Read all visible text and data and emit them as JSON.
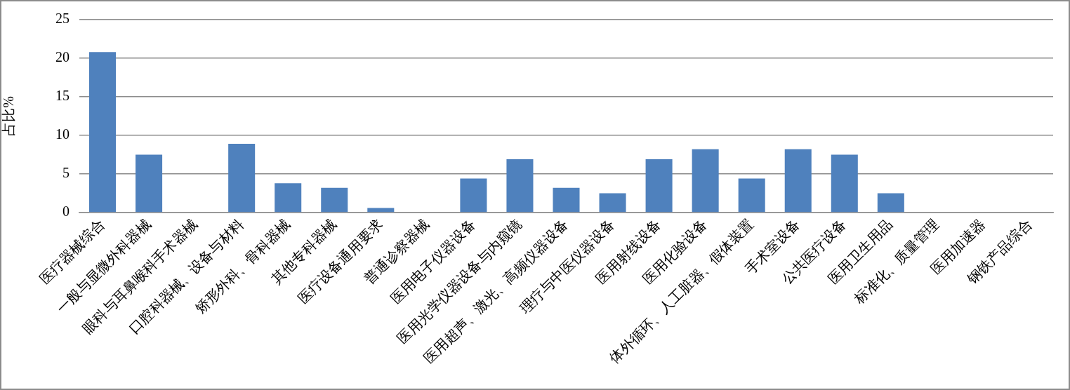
{
  "chart_data": {
    "type": "bar",
    "ylabel": "占比%",
    "categories": [
      "医疗器械综合",
      "一般与显微外科器械",
      "眼科与耳鼻喉科手术器械",
      "口腔科器械、设备与材料",
      "矫形外科、骨科器械",
      "其他专科器械",
      "医疗设备通用要求",
      "普通诊察器械",
      "医用电子仪器设备",
      "医用光学仪器设备与内窥镜",
      "医用超声、激光、高频仪器设备",
      "理疗与中医仪器设备",
      "医用射线设备",
      "医用化验设备",
      "体外循环、人工脏器、假体装置",
      "手术室设备",
      "公共医疗设备",
      "医用卫生用品",
      "标准化、质量管理",
      "医用加速器",
      "钢铁产品综合"
    ],
    "values": [
      20.8,
      7.5,
      0,
      8.9,
      3.8,
      3.2,
      0.6,
      0,
      4.4,
      6.9,
      3.2,
      2.5,
      6.9,
      8.2,
      4.4,
      8.2,
      7.5,
      2.5,
      0,
      0,
      0
    ],
    "color": "#4f81bd",
    "ylim": [
      0,
      25
    ],
    "yticks": [
      0,
      5,
      10,
      15,
      20,
      25
    ],
    "grid": "y"
  }
}
